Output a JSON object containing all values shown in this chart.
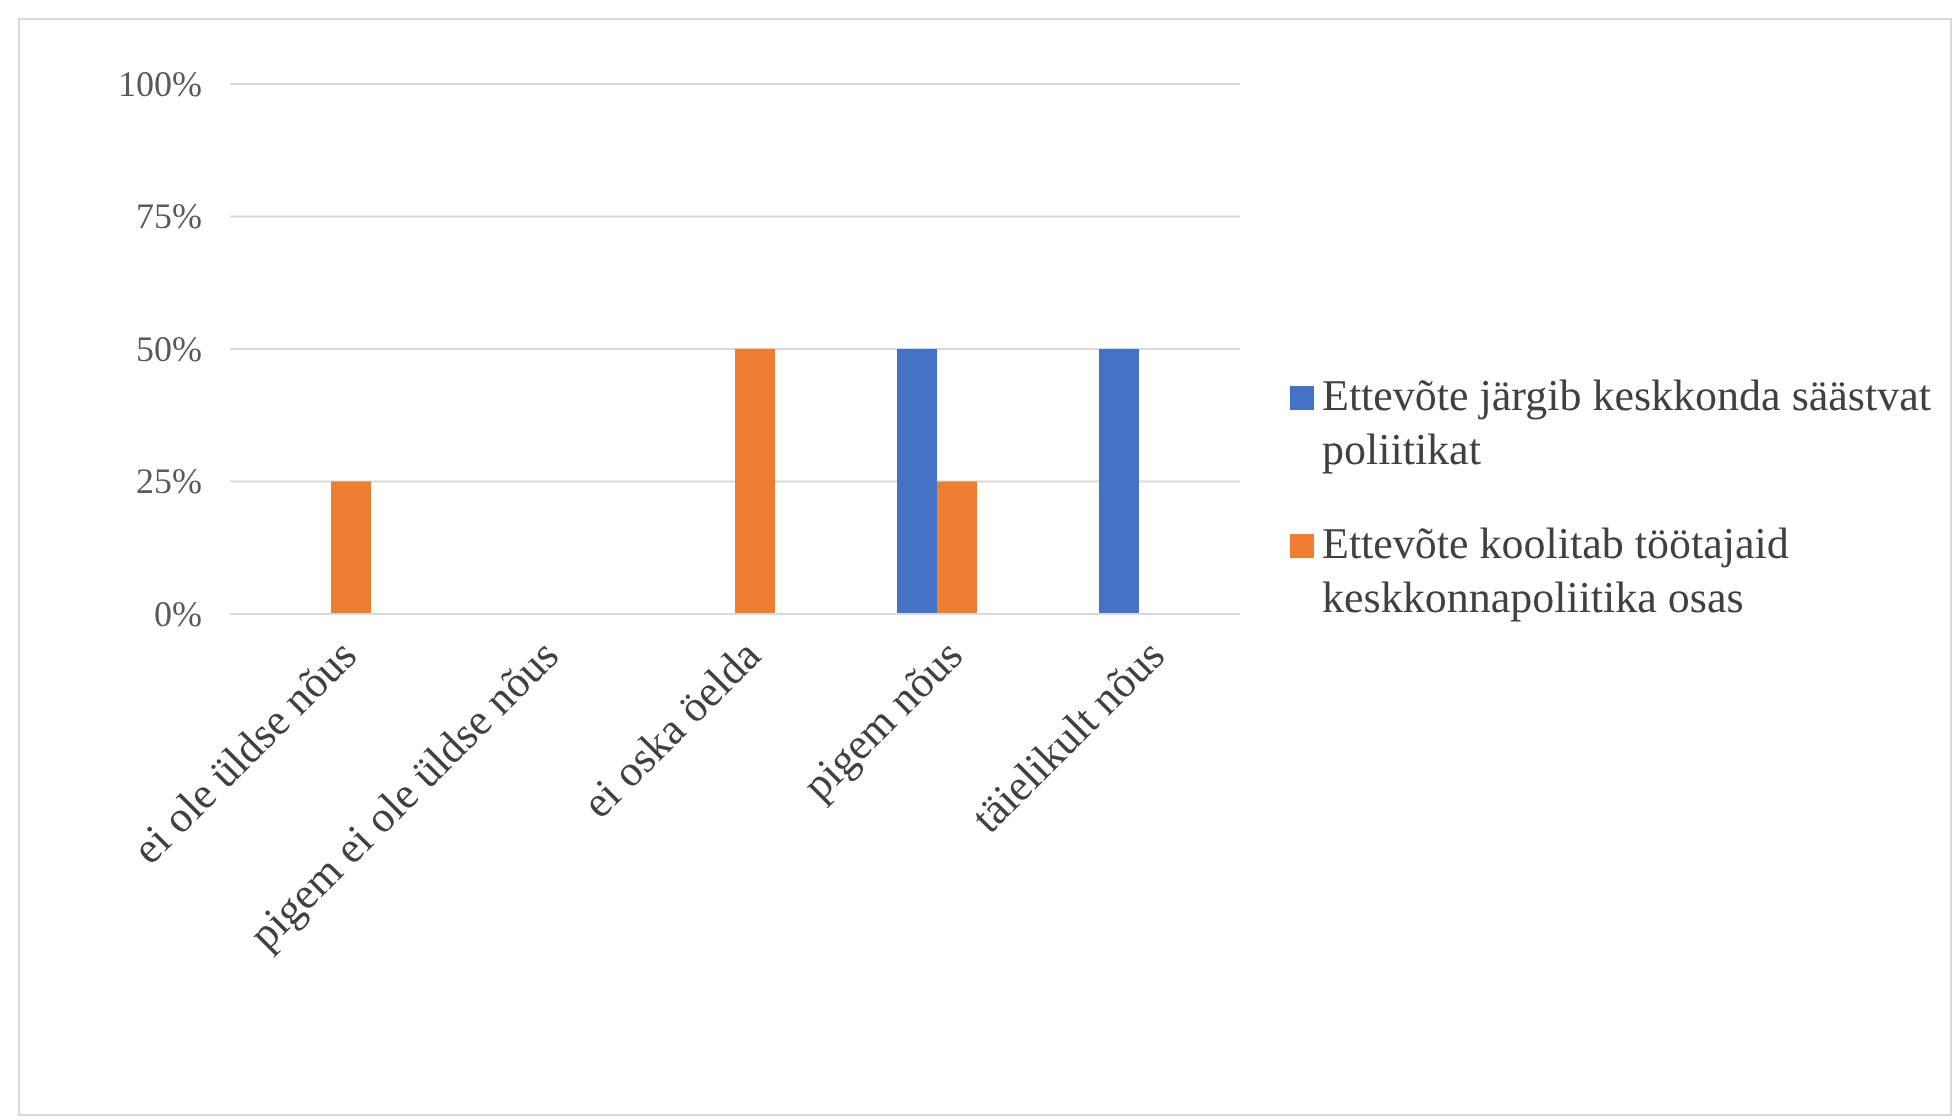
{
  "chart_data": {
    "type": "bar",
    "categories": [
      "ei ole üldse nõus",
      "pigem ei ole üldse nõus",
      "ei oska öelda",
      "pigem nõus",
      "täielikult nõus"
    ],
    "series": [
      {
        "name": "Ettevõte järgib keskkonda säästvat poliitikat",
        "color": "#4472c4",
        "values": [
          0,
          0,
          0,
          50,
          50
        ]
      },
      {
        "name": "Ettevõte koolitab töötajaid keskkonnapoliitika osas",
        "color": "#ed7d31",
        "values": [
          25,
          0,
          50,
          25,
          0
        ]
      }
    ],
    "ylim": [
      0,
      100
    ],
    "yticks": [
      {
        "value": 0,
        "label": "0%"
      },
      {
        "value": 25,
        "label": "25%"
      },
      {
        "value": 50,
        "label": "50%"
      },
      {
        "value": 75,
        "label": "75%"
      },
      {
        "value": 100,
        "label": "100%"
      }
    ],
    "grid": "y",
    "legend": "right"
  }
}
